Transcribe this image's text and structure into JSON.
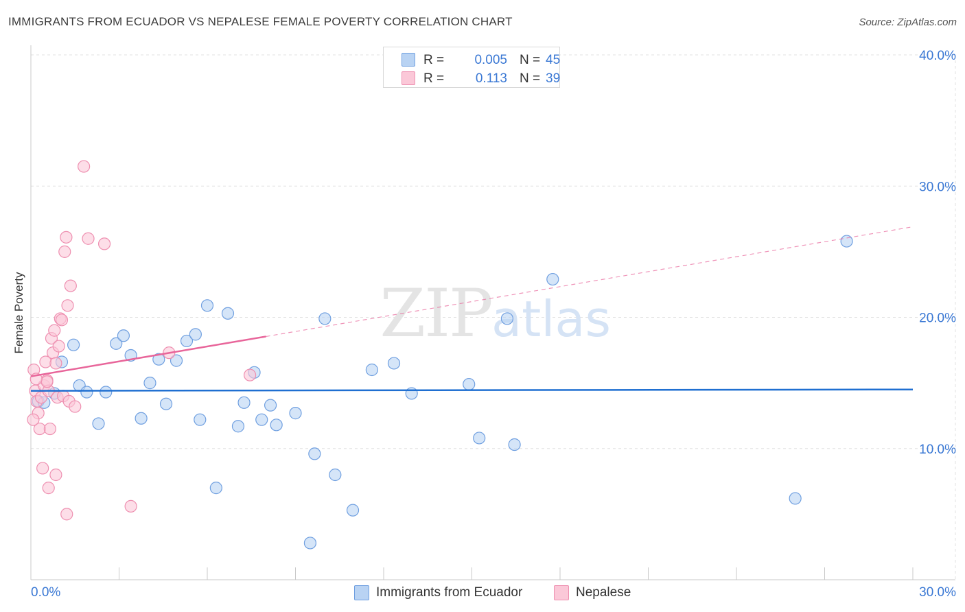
{
  "header": {
    "title": "IMMIGRANTS FROM ECUADOR VS NEPALESE FEMALE POVERTY CORRELATION CHART",
    "source": "Source: ZipAtlas.com"
  },
  "watermark": {
    "zip": "ZIP",
    "atlas": "atlas"
  },
  "legend": {
    "items": [
      {
        "r_label": "R =",
        "r_value": "0.005",
        "n_label": "N =",
        "n_value": "45",
        "fill": "#b9d3f3",
        "stroke": "#6f9fe0"
      },
      {
        "r_label": "R =",
        "r_value": "0.113",
        "n_label": "N =",
        "n_value": "39",
        "fill": "#fbc8d8",
        "stroke": "#ee8fb0"
      }
    ]
  },
  "bottom_legend": {
    "series1": "Immigrants from Ecuador",
    "series2": "Nepalese"
  },
  "colors": {
    "blue_fill": "#b9d3f3",
    "blue_stroke": "#6f9fe0",
    "blue_line": "#1f6fd1",
    "pink_fill": "#fbc8d8",
    "pink_stroke": "#ee8fb0",
    "pink_line": "#e8659a",
    "grid": "#e0e0e0",
    "axis_label": "#3a78d4"
  },
  "chart_data": {
    "type": "scatter",
    "title": "IMMIGRANTS FROM ECUADOR VS NEPALESE FEMALE POVERTY CORRELATION CHART",
    "xlabel": "",
    "ylabel": "Female Poverty",
    "xlim": [
      0,
      30
    ],
    "ylim": [
      0,
      40
    ],
    "x_tick_labels": [
      "0.0%",
      "30.0%"
    ],
    "y_ticks": [
      {
        "value": 10,
        "label": "10.0%"
      },
      {
        "value": 20,
        "label": "20.0%"
      },
      {
        "value": 30,
        "label": "30.0%"
      },
      {
        "value": 40,
        "label": "40.0%"
      }
    ],
    "grid": true,
    "legend_position": "top-center",
    "series": [
      {
        "name": "Immigrants from Ecuador",
        "r": 0.005,
        "n": 45,
        "trend": {
          "x": [
            0,
            30
          ],
          "y": [
            14.4,
            14.5
          ],
          "dashed_from": null
        },
        "points": [
          [
            0.25,
            13.6
          ],
          [
            0.45,
            13.5
          ],
          [
            0.8,
            14.2
          ],
          [
            1.05,
            16.6
          ],
          [
            1.45,
            17.9
          ],
          [
            1.65,
            14.8
          ],
          [
            1.9,
            14.3
          ],
          [
            2.3,
            11.9
          ],
          [
            2.55,
            14.3
          ],
          [
            2.9,
            18.0
          ],
          [
            3.15,
            18.6
          ],
          [
            3.4,
            17.1
          ],
          [
            3.75,
            12.3
          ],
          [
            4.05,
            15.0
          ],
          [
            4.35,
            16.8
          ],
          [
            4.6,
            13.4
          ],
          [
            4.95,
            16.7
          ],
          [
            5.3,
            18.2
          ],
          [
            5.6,
            18.7
          ],
          [
            5.75,
            12.2
          ],
          [
            6.0,
            20.9
          ],
          [
            6.3,
            7.0
          ],
          [
            6.7,
            20.3
          ],
          [
            7.05,
            11.7
          ],
          [
            7.25,
            13.5
          ],
          [
            7.6,
            15.8
          ],
          [
            7.85,
            12.2
          ],
          [
            8.15,
            13.3
          ],
          [
            8.35,
            11.8
          ],
          [
            9.0,
            12.7
          ],
          [
            9.5,
            2.8
          ],
          [
            9.65,
            9.6
          ],
          [
            10.0,
            19.9
          ],
          [
            10.35,
            8.0
          ],
          [
            10.95,
            5.3
          ],
          [
            11.6,
            16.0
          ],
          [
            12.35,
            16.5
          ],
          [
            12.95,
            14.2
          ],
          [
            14.9,
            14.9
          ],
          [
            15.25,
            10.8
          ],
          [
            16.2,
            19.9
          ],
          [
            16.45,
            10.3
          ],
          [
            17.75,
            22.9
          ],
          [
            26.0,
            6.2
          ],
          [
            27.75,
            25.8
          ]
        ]
      },
      {
        "name": "Nepalese",
        "r": 0.113,
        "n": 39,
        "trend": {
          "x": [
            0,
            30
          ],
          "y": [
            15.5,
            26.9
          ],
          "dashed_from": 8.0
        },
        "points": [
          [
            0.1,
            16.0
          ],
          [
            0.15,
            14.4
          ],
          [
            0.2,
            13.6
          ],
          [
            0.25,
            12.7
          ],
          [
            0.3,
            11.5
          ],
          [
            0.35,
            13.9
          ],
          [
            0.4,
            8.5
          ],
          [
            0.45,
            14.8
          ],
          [
            0.5,
            16.6
          ],
          [
            0.55,
            15.2
          ],
          [
            0.6,
            14.4
          ],
          [
            0.65,
            11.5
          ],
          [
            0.7,
            18.4
          ],
          [
            0.75,
            17.3
          ],
          [
            0.8,
            19.0
          ],
          [
            0.85,
            16.5
          ],
          [
            0.9,
            13.9
          ],
          [
            0.95,
            17.8
          ],
          [
            1.0,
            19.9
          ],
          [
            1.05,
            19.8
          ],
          [
            1.1,
            14.0
          ],
          [
            1.15,
            25.0
          ],
          [
            1.2,
            26.1
          ],
          [
            1.25,
            20.9
          ],
          [
            1.3,
            13.6
          ],
          [
            1.35,
            22.4
          ],
          [
            1.5,
            13.2
          ],
          [
            1.8,
            31.5
          ],
          [
            1.95,
            26.0
          ],
          [
            2.5,
            25.6
          ],
          [
            3.4,
            5.6
          ],
          [
            4.7,
            17.3
          ],
          [
            7.45,
            15.6
          ],
          [
            1.22,
            5.0
          ],
          [
            0.6,
            7.0
          ],
          [
            0.85,
            8.0
          ],
          [
            0.08,
            12.2
          ],
          [
            0.55,
            15.1
          ],
          [
            0.18,
            15.3
          ]
        ]
      }
    ]
  }
}
